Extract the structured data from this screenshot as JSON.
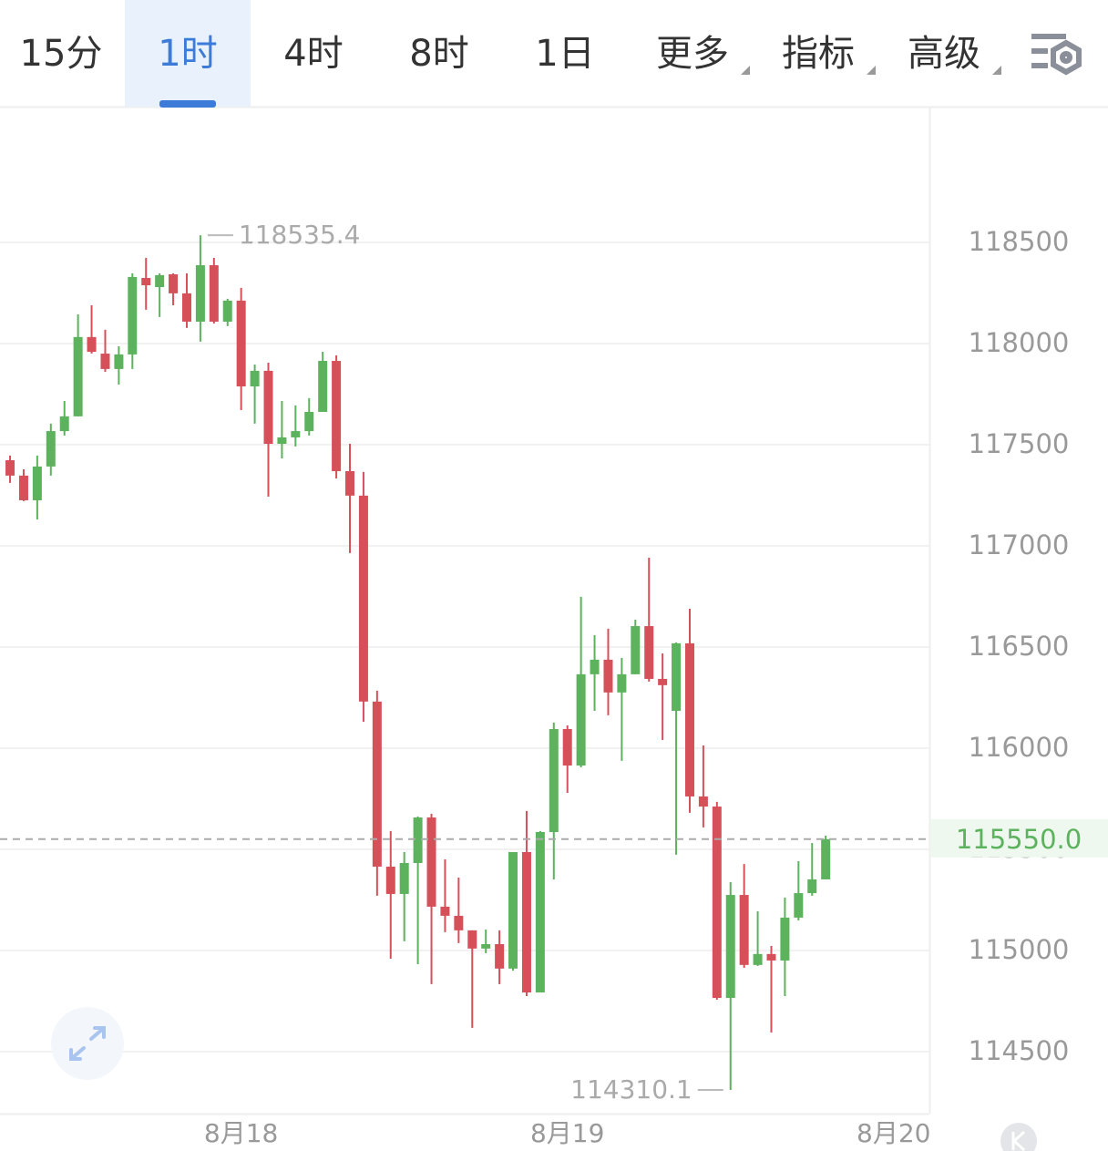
{
  "toolbar": {
    "tabs": [
      "15分",
      "1时",
      "4时",
      "8时",
      "1日",
      "更多",
      "指标",
      "高级"
    ],
    "active": 1
  },
  "chart_data": {
    "type": "candlestick",
    "up_color": "#5cb25d",
    "down_color": "#d6505a",
    "open": [
      117423,
      117347,
      117225,
      117392,
      117567,
      117640,
      118032,
      117950,
      117874,
      117946,
      118324,
      118279,
      118342,
      118248,
      118108,
      118387,
      118108,
      118212,
      117788,
      117865,
      117504,
      117536,
      117567,
      117662,
      117914,
      117369,
      117248,
      116230,
      115414,
      115279,
      115432,
      115657,
      115216,
      115171,
      115099,
      115009,
      115031,
      114910,
      115486,
      114792,
      115585,
      116094,
      115914,
      116365,
      116437,
      116275,
      116365,
      116603,
      116342,
      116184,
      116518,
      115761,
      115711,
      114765,
      115274,
      114928,
      114982,
      114950,
      115162,
      115283,
      115351
    ],
    "high": [
      117446,
      117378,
      117446,
      117604,
      117716,
      118144,
      118189,
      118068,
      117986,
      118347,
      118423,
      118347,
      118347,
      118347,
      118535.4,
      118423,
      118221,
      118275,
      117896,
      117905,
      117716,
      117694,
      117730,
      117959,
      117941,
      117504,
      117365,
      116284,
      115590,
      115486,
      115662,
      115675,
      115450,
      115360,
      115099,
      115103,
      115099,
      115486,
      115689,
      115590,
      116126,
      116112,
      116748,
      116558,
      116590,
      116446,
      116635,
      116941,
      116468,
      116522,
      116689,
      116013,
      115734,
      115337,
      115427,
      115193,
      115022,
      115261,
      115441,
      115531,
      115567
    ],
    "low": [
      117311,
      117221,
      117130,
      117347,
      117545,
      117640,
      117950,
      117860,
      117797,
      117874,
      118167,
      118131,
      118189,
      118077,
      118009,
      118099,
      118086,
      117671,
      117604,
      117243,
      117432,
      117491,
      117545,
      117662,
      117333,
      116964,
      116130,
      115270,
      114959,
      115045,
      114932,
      114833,
      115090,
      115036,
      114617,
      114986,
      114833,
      114900,
      114774,
      114792,
      115351,
      115779,
      115905,
      116184,
      116162,
      115937,
      116365,
      116329,
      116040,
      115473,
      115680,
      115608,
      114756,
      114310.1,
      114914,
      114923,
      114594,
      114774,
      115148,
      115270,
      115351
    ],
    "close": [
      117347,
      117225,
      117392,
      117567,
      117640,
      118032,
      117959,
      117874,
      117946,
      118329,
      118288,
      118338,
      118248,
      118108,
      118387,
      118108,
      118212,
      117788,
      117865,
      117504,
      117536,
      117567,
      117662,
      117914,
      117369,
      117248,
      116230,
      115414,
      115279,
      115432,
      115657,
      115216,
      115171,
      115099,
      115009,
      115031,
      114910,
      115486,
      114792,
      115585,
      116094,
      115914,
      116365,
      116437,
      116275,
      116365,
      116603,
      116342,
      116311,
      116518,
      115761,
      115711,
      114765,
      115274,
      114928,
      114982,
      114950,
      115162,
      115283,
      115351,
      115550
    ],
    "xlim": [
      -0.74,
      67.63
    ],
    "xticks": [
      {
        "value": 17,
        "label": "8月18"
      },
      {
        "value": 41,
        "label": "8月19"
      },
      {
        "value": 65,
        "label": "8月20"
      }
    ],
    "ylim": [
      114193,
      119171
    ],
    "yticks": [
      114500,
      115000,
      115500,
      116000,
      116500,
      117000,
      117500,
      118000,
      118500
    ],
    "grid": true,
    "last_price": {
      "value": 115550,
      "label": "115550.0"
    },
    "high_label_index": 14,
    "low_label_index": 53
  }
}
